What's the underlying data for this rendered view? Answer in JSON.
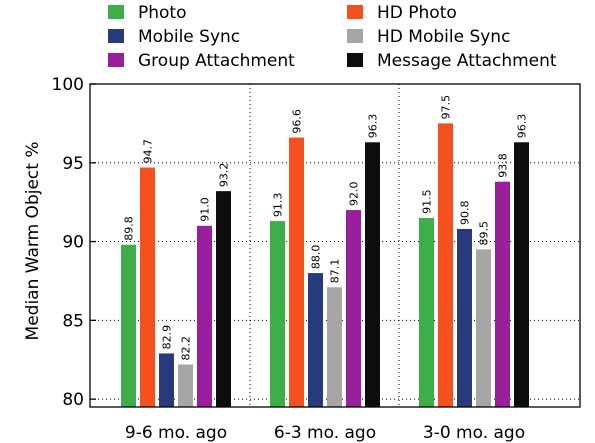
{
  "chart_data": {
    "type": "bar",
    "title": "",
    "xlabel": "",
    "ylabel": "Median Warm Object %",
    "ylim": [
      79.5,
      100
    ],
    "yticks": [
      80,
      85,
      90,
      95,
      100
    ],
    "ytick_labels": [
      "80",
      "85",
      "90",
      "95",
      "100"
    ],
    "grid": "dotted",
    "legend_placement": "top, two columns",
    "categories": [
      "9-6 mo. ago",
      "6-3 mo. ago",
      "3-0 mo. ago"
    ],
    "series": [
      {
        "name": "Photo",
        "color": "#3dae48",
        "values": [
          89.8,
          91.3,
          91.5
        ],
        "labels": [
          "89.8",
          "91.3",
          "91.5"
        ]
      },
      {
        "name": "HD Photo",
        "color": "#f4511e",
        "values": [
          94.7,
          96.6,
          97.5
        ],
        "labels": [
          "94.7",
          "96.6",
          "97.5"
        ]
      },
      {
        "name": "Mobile Sync",
        "color": "#283a7c",
        "values": [
          82.9,
          88.0,
          90.8
        ],
        "labels": [
          "82.9",
          "88.0",
          "90.8"
        ]
      },
      {
        "name": "HD Mobile Sync",
        "color": "#a6a6a6",
        "values": [
          82.2,
          87.1,
          89.5
        ],
        "labels": [
          "82.2",
          "87.1",
          "89.5"
        ]
      },
      {
        "name": "Group Attachment",
        "color": "#9a1f9c",
        "values": [
          91.0,
          92.0,
          93.8
        ],
        "labels": [
          "91.0",
          "92.0",
          "93.8"
        ]
      },
      {
        "name": "Message Attachment",
        "color": "#0d0d0d",
        "values": [
          93.2,
          96.3,
          96.3
        ],
        "labels": [
          "93.2",
          "96.3",
          "96.3"
        ]
      }
    ]
  }
}
